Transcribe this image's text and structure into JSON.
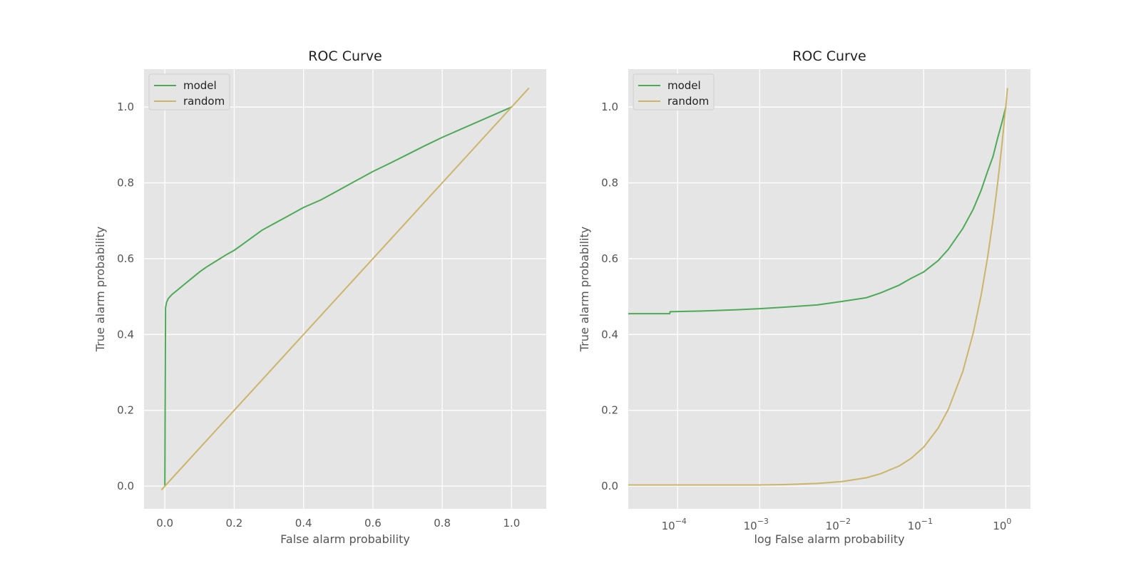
{
  "chart_data": [
    {
      "type": "line",
      "title": "ROC Curve",
      "xlabel": "False alarm probability",
      "ylabel": "True alarm probability",
      "xscale": "linear",
      "xlim": [
        -0.06,
        1.1
      ],
      "ylim": [
        -0.06,
        1.1
      ],
      "xticks": [
        0.0,
        0.2,
        0.4,
        0.6,
        0.8,
        1.0
      ],
      "xtick_labels": [
        "0.0",
        "0.2",
        "0.4",
        "0.6",
        "0.8",
        "1.0"
      ],
      "yticks": [
        0.0,
        0.2,
        0.4,
        0.6,
        0.8,
        1.0
      ],
      "ytick_labels": [
        "0.0",
        "0.2",
        "0.4",
        "0.6",
        "0.8",
        "1.0"
      ],
      "legend_position": "top-left",
      "series": [
        {
          "name": "model",
          "color": "#4daa57",
          "x": [
            0.0,
            0.002,
            0.005,
            0.01,
            0.02,
            0.04,
            0.06,
            0.08,
            0.1,
            0.12,
            0.15,
            0.18,
            0.2,
            0.22,
            0.25,
            0.28,
            0.3,
            0.35,
            0.4,
            0.45,
            0.5,
            0.55,
            0.6,
            0.65,
            0.7,
            0.75,
            0.8,
            0.85,
            0.9,
            0.95,
            1.0
          ],
          "y": [
            0.0,
            0.47,
            0.485,
            0.495,
            0.505,
            0.52,
            0.535,
            0.55,
            0.565,
            0.578,
            0.595,
            0.612,
            0.622,
            0.635,
            0.655,
            0.675,
            0.685,
            0.71,
            0.735,
            0.755,
            0.78,
            0.805,
            0.83,
            0.852,
            0.875,
            0.898,
            0.92,
            0.94,
            0.96,
            0.98,
            1.0
          ]
        },
        {
          "name": "random",
          "color": "#ccb469",
          "x": [
            -0.01,
            1.05
          ],
          "y": [
            -0.01,
            1.05
          ]
        }
      ]
    },
    {
      "type": "line",
      "title": "ROC Curve",
      "xlabel": "log False alarm probability",
      "ylabel": "True alarm probability",
      "xscale": "log",
      "xlim": [
        2.5e-05,
        2.0
      ],
      "ylim": [
        -0.06,
        1.1
      ],
      "xticks": [
        0.0001,
        0.001,
        0.01,
        0.1,
        1
      ],
      "xtick_labels": [
        {
          "base": "10",
          "exp": "−4"
        },
        {
          "base": "10",
          "exp": "−3"
        },
        {
          "base": "10",
          "exp": "−2"
        },
        {
          "base": "10",
          "exp": "−1"
        },
        {
          "base": "10",
          "exp": "0"
        }
      ],
      "yticks": [
        0.0,
        0.2,
        0.4,
        0.6,
        0.8,
        1.0
      ],
      "ytick_labels": [
        "0.0",
        "0.2",
        "0.4",
        "0.6",
        "0.8",
        "1.0"
      ],
      "legend_position": "top-left",
      "series": [
        {
          "name": "model",
          "color": "#4daa57",
          "x": [
            2.5e-05,
            8e-05,
            8.1e-05,
            0.0002,
            0.0005,
            0.001,
            0.002,
            0.005,
            0.01,
            0.02,
            0.03,
            0.05,
            0.07,
            0.1,
            0.15,
            0.2,
            0.3,
            0.4,
            0.5,
            0.6,
            0.7,
            0.8,
            0.9,
            1.0
          ],
          "y": [
            0.455,
            0.455,
            0.46,
            0.462,
            0.465,
            0.468,
            0.472,
            0.478,
            0.487,
            0.497,
            0.51,
            0.53,
            0.548,
            0.565,
            0.595,
            0.625,
            0.68,
            0.73,
            0.78,
            0.83,
            0.87,
            0.92,
            0.96,
            1.0
          ]
        },
        {
          "name": "random",
          "color": "#ccb469",
          "x": [
            2.5e-05,
            0.0001,
            0.001,
            0.002,
            0.005,
            0.01,
            0.02,
            0.03,
            0.05,
            0.07,
            0.1,
            0.15,
            0.2,
            0.3,
            0.4,
            0.5,
            0.6,
            0.7,
            0.8,
            0.9,
            1.0,
            1.05
          ],
          "y": [
            0.003,
            0.003,
            0.003,
            0.004,
            0.007,
            0.012,
            0.022,
            0.033,
            0.053,
            0.073,
            0.103,
            0.153,
            0.203,
            0.303,
            0.403,
            0.503,
            0.603,
            0.703,
            0.803,
            0.903,
            1.0,
            1.05
          ]
        }
      ]
    }
  ]
}
